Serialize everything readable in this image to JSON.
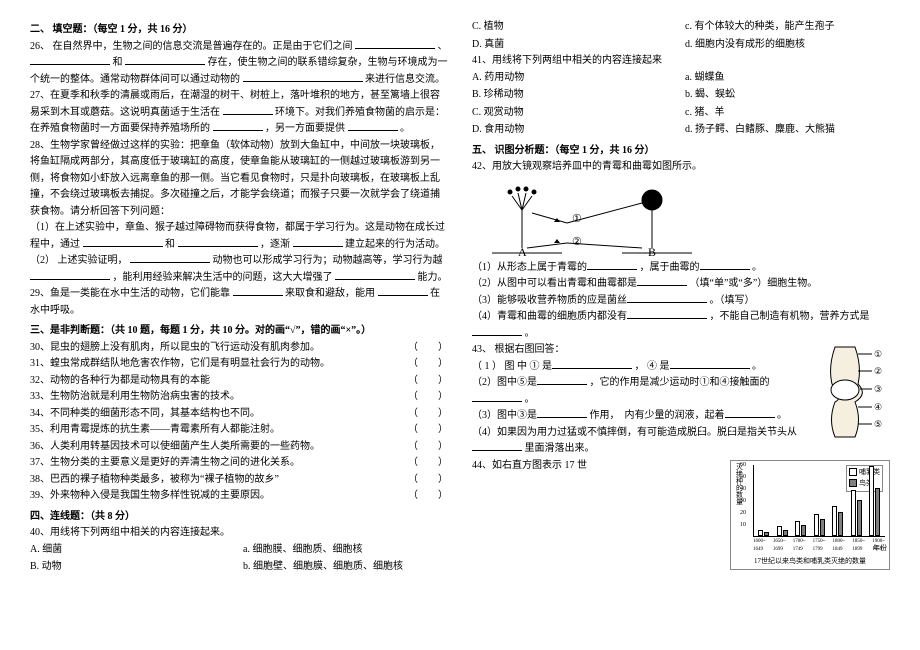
{
  "s2": {
    "head": "二、 填空题：（每空 1 分，共 16 分）"
  },
  "q26": {
    "t1": "26、 在自然界中，生物之间的信息交流是普遍存在的。正是由于它们之间",
    "t2": "、",
    "t3": "和",
    "t4": "存在，使生物之间的联系错综复杂，生物与环境成为一个统一的整体。通常动物群体间可以通过动物的",
    "t5": "来进行信息交流。"
  },
  "q27": {
    "t1": "27、在夏季和秋季的清晨或雨后，在潮湿的树干、树桩上，落叶堆积的地方，甚至篱墙上很容易采到木耳或蘑菇。这说明真菌适于生活在",
    "t2": "环境下。对我们养殖食物菌的启示是：在养殖食物菌时一方面要保持养殖场所的",
    "t3": "，另一方面要提供",
    "t4": "。"
  },
  "q28": {
    "t1": "28、生物学家曾经做过这样的实验：把章鱼（软体动物）放到大鱼缸中，中间放一块玻璃板，将鱼缸隔成两部分，其高度低于玻璃缸的高度，使章鱼能从玻璃缸的一侧越过玻璃板游到另一侧，将食物如小虾放入远离章鱼的那一侧。当它看见食物时，只是扑向玻璃板，在玻璃板上乱撞，不会绕过玻璃板去捕捉。多次碰撞之后，才能学会绕道；而猴子只要一次就学会了绕道捕获食物。请分析回答下列问题：",
    "p1a": "（1）在上述实验中，章鱼、猴子越过障碍物而获得食物，都属于学习行为。这是动物在成长过程中，通过",
    "p1b": "和",
    "p1c": "，逐渐",
    "p1d": "建立起来的行为活动。",
    "p2a": "（2） 上述实验证明，",
    "p2b": "动物也可以形成学习行为；动物越高等，学习行为越",
    "p2c": "，能利用经验来解决生活中的问题，这大大增强了",
    "p2d": "能力。"
  },
  "q29": {
    "t1": "29、鱼是一类能在水中生活的动物，它们能靠",
    "t2": "来取食和避敌，能用",
    "t3": "在水中呼吸。"
  },
  "s3": {
    "head": "三、是非判断题：（共 10 题，每题 1 分，共 10 分。对的画“√”，错的画“×”。）"
  },
  "tf": {
    "q30": "30、昆虫的翅膀上没有肌肉，所以昆虫的飞行运动没有肌肉参加。",
    "q31": "31、蝗虫常成群结队地危害农作物，它们是有明显社会行为的动物。",
    "q32": "32、动物的各种行为都是动物具有的本能",
    "q33": "33、生物防治就是利用生物防治病虫害的技术。",
    "q34": "34、不同种类的细菌形态不同，其基本结构也不同。",
    "q35": "35、利用青霉提炼的抗生素——青霉素所有人都能注射。",
    "q36": "36、人类利用转基因技术可以使细菌产生人类所需要的一些药物。",
    "q37": "37、生物分类的主要意义是更好的弄清生物之间的进化关系。",
    "q38": "38、巴西的裸子植物种类最多，被称为“裸子植物的故乡”",
    "q39": "39、外来物种入侵是我国生物多样性锐减的主要原因。"
  },
  "paren": "（　　）",
  "s4": {
    "head": "四、连线题：（共 8 分）"
  },
  "q40": {
    "t": "40、用线将下列两组中相关的内容连接起来。"
  },
  "conn1": {
    "l0": "A.  细菌",
    "r0": "a.  细胞膜、细胞质、细胞核",
    "l1": "B.  动物",
    "r1": "b. 细胞壁、细胞膜、细胞质、细胞核",
    "l2": "C.  植物",
    "r2": "c.  有个体较大的种类，能产生孢子",
    "l3": "D.  真菌",
    "r3": "d.  细胞内没有成形的细胞核"
  },
  "q41": {
    "t": "41、用线将下列两组中相关的内容连接起来"
  },
  "conn2": {
    "l0": "A.  药用动物",
    "r0": "a.  蝴蝶鱼",
    "l1": "B.  珍稀动物",
    "r1": "b.  蝎、蜈蚣",
    "l2": "C.  观赏动物",
    "r2": "c.  猪、羊",
    "l3": "D.  食用动物",
    "r3": "d.  扬子鳄、白鳍豚、麋鹿、大熊猫"
  },
  "s5": {
    "head": "五、 识图分析题：（每空 1 分，共 16 分）"
  },
  "q42": {
    "t": "42、用放大镜观察培养皿中的青霉和曲霉如图所示。",
    "p1a": "（1）从形态上属于青霉的",
    "p1b": "，属于曲霉的",
    "p1c": "。",
    "p2a": "（2）从图中可以看出青霉和曲霉都是",
    "p2b": "（填“单”或“多”）细胞生物。",
    "p3a": "（3）能够吸收营养物质的应是菌丝",
    "p3b": "。（填写）",
    "p4a": "（4）青霉和曲霉的细胞质内都没有",
    "p4b": "，不能自己制造有机物，营养方式是",
    "p4c": "。",
    "labA": "A",
    "labB": "B",
    "lab1": "①",
    "lab2": "②"
  },
  "q43": {
    "t": "43、 根据右图回答：",
    "p1a": "（ 1 ） 图 中 ① 是",
    "p1b": "， ④ 是",
    "p1c": "。",
    "p2a": "（2）图中⑤是",
    "p2b": "，它的作用是减少运动时①和④接触面的",
    "p2c": "。",
    "p3a": "（3）图中③是",
    "p3b": "作用，　内有少量的润液，起着",
    "p3c": "。",
    "p4a": "（4）如果因为用力过猛或不慎摔倒，有可能造成脱臼。脱臼是指关节头从",
    "p4b": "里面滑落出来。",
    "jlabels": {
      "n1": "①",
      "n2": "②",
      "n3": "③",
      "n4": "④",
      "n5": "⑤"
    }
  },
  "q44": {
    "t": "44、如右直方图表示 17 世"
  },
  "chart": {
    "type": "bar",
    "title": "17世纪以来鸟类和哺乳类灭绝的数量",
    "ylabel": "灭绝种的数量",
    "y_ticks": [
      "10",
      "20",
      "30",
      "40",
      "50",
      "60"
    ],
    "x_labels": [
      "1600~\n1649",
      "1650~\n1699",
      "1700~\n1749",
      "1750~\n1799",
      "1800~\n1849",
      "1850~\n1899",
      "1900~\n1959"
    ],
    "x_axis_label": "年份",
    "series": [
      {
        "name": "哺乳类",
        "color": "#ffffff",
        "border": "#000",
        "values": [
          5,
          8,
          12,
          18,
          25,
          38,
          58
        ]
      },
      {
        "name": "鸟类",
        "color": "#808080",
        "border": "#000",
        "values": [
          3,
          5,
          9,
          14,
          20,
          30,
          40
        ]
      }
    ],
    "ylim": [
      0,
      60
    ],
    "legend": {
      "pos": "top-left"
    }
  }
}
